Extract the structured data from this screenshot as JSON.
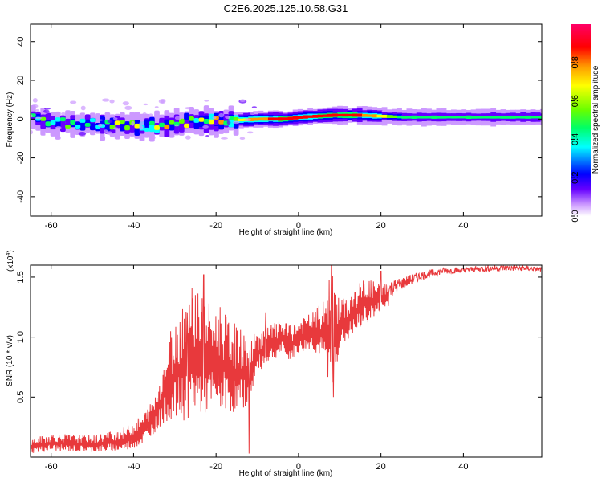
{
  "title": "C2E6.2025.125.10.58.G31",
  "chart_data": [
    {
      "type": "heatmap",
      "xlabel": "Height of straight line (km)",
      "ylabel": "Frequency (Hz)",
      "xlim": [
        -65,
        59
      ],
      "ylim": [
        -50,
        49
      ],
      "x_ticks": [
        -60,
        -40,
        -20,
        0,
        20,
        40
      ],
      "y_ticks": [
        -40,
        -20,
        0,
        20,
        40
      ],
      "colorbar": {
        "label": "Normalized spectral amplitude",
        "range": [
          0,
          1
        ],
        "ticks": [
          "0.0",
          "0.2",
          "0.4",
          "0.6",
          "0.8"
        ],
        "colors": [
          "#ffffff",
          "#cc99ff",
          "#6600ff",
          "#0000ff",
          "#00ffff",
          "#00ff66",
          "#66ff00",
          "#ffff00",
          "#ff9900",
          "#ff0000",
          "#ff0066"
        ]
      },
      "ridge": {
        "description_points": [
          {
            "x": -64,
            "freq": -1,
            "amp": 0.45
          },
          {
            "x": -55,
            "freq": -2,
            "amp": 0.5
          },
          {
            "x": -45,
            "freq": -3,
            "amp": 0.55
          },
          {
            "x": -38,
            "freq": -4,
            "amp": 0.6
          },
          {
            "x": -30,
            "freq": -2,
            "amp": 0.6
          },
          {
            "x": -20,
            "freq": -1,
            "amp": 0.65
          },
          {
            "x": -10,
            "freq": 0,
            "amp": 0.8
          },
          {
            "x": -4,
            "freq": 0,
            "amp": 0.95
          },
          {
            "x": 0,
            "freq": 1,
            "amp": 0.85
          },
          {
            "x": 8,
            "freq": 2,
            "amp": 0.95
          },
          {
            "x": 14,
            "freq": 2,
            "amp": 0.9
          },
          {
            "x": 25,
            "freq": 1,
            "amp": 0.5
          },
          {
            "x": 40,
            "freq": 1,
            "amp": 0.45
          },
          {
            "x": 59,
            "freq": 1,
            "amp": 0.45
          }
        ]
      }
    },
    {
      "type": "line",
      "xlabel": "Height of straight line (km)",
      "ylabel": "SNR (10 * v/v)",
      "y_multiplier": "(x10",
      "y_multiplier_exp": "4",
      "y_multiplier_close": ")",
      "xlim": [
        -65,
        59
      ],
      "ylim": [
        0,
        1.6
      ],
      "x_ticks": [
        -60,
        -40,
        -20,
        0,
        20,
        40
      ],
      "y_ticks": [
        0.5,
        1.0,
        1.5
      ],
      "series": [
        {
          "color": "#e8393c",
          "envelope_x": [
            -65,
            -60,
            -50,
            -42,
            -38,
            -35,
            -32,
            -28,
            -25,
            -22,
            -18,
            -15,
            -12,
            -10,
            -7,
            -4,
            -2,
            0,
            3,
            6,
            8,
            10,
            13,
            16,
            20,
            25,
            30,
            35,
            40,
            45,
            50,
            55,
            59
          ],
          "envelope_low": [
            0.03,
            0.05,
            0.04,
            0.05,
            0.1,
            0.2,
            0.3,
            0.3,
            0.35,
            0.35,
            0.4,
            0.35,
            0.45,
            0.7,
            0.8,
            0.85,
            0.8,
            0.85,
            0.9,
            0.8,
            0.55,
            0.9,
            1.0,
            1.1,
            1.2,
            1.35,
            1.45,
            1.5,
            1.52,
            1.52,
            1.53,
            1.53,
            1.53
          ],
          "envelope_high": [
            0.15,
            0.2,
            0.18,
            0.25,
            0.35,
            0.5,
            0.9,
            1.35,
            1.5,
            1.3,
            1.2,
            1.1,
            1.0,
            1.05,
            1.1,
            1.15,
            1.1,
            1.15,
            1.2,
            1.3,
            1.58,
            1.3,
            1.38,
            1.5,
            1.45,
            1.5,
            1.55,
            1.58,
            1.58,
            1.6,
            1.6,
            1.6,
            1.58
          ],
          "spikes": [
            {
              "x": -31,
              "y": 1.05
            },
            {
              "x": -27,
              "y": 1.2
            },
            {
              "x": -25,
              "y": 1.35
            },
            {
              "x": -23,
              "y": 1.52
            },
            {
              "x": -19,
              "y": 1.25
            },
            {
              "x": -12,
              "y": 0.03
            },
            {
              "x": -8,
              "y": 1.2
            },
            {
              "x": 8,
              "y": 1.6
            },
            {
              "x": 8.5,
              "y": 0.5
            },
            {
              "x": 20,
              "y": 1.55
            }
          ]
        }
      ]
    }
  ]
}
